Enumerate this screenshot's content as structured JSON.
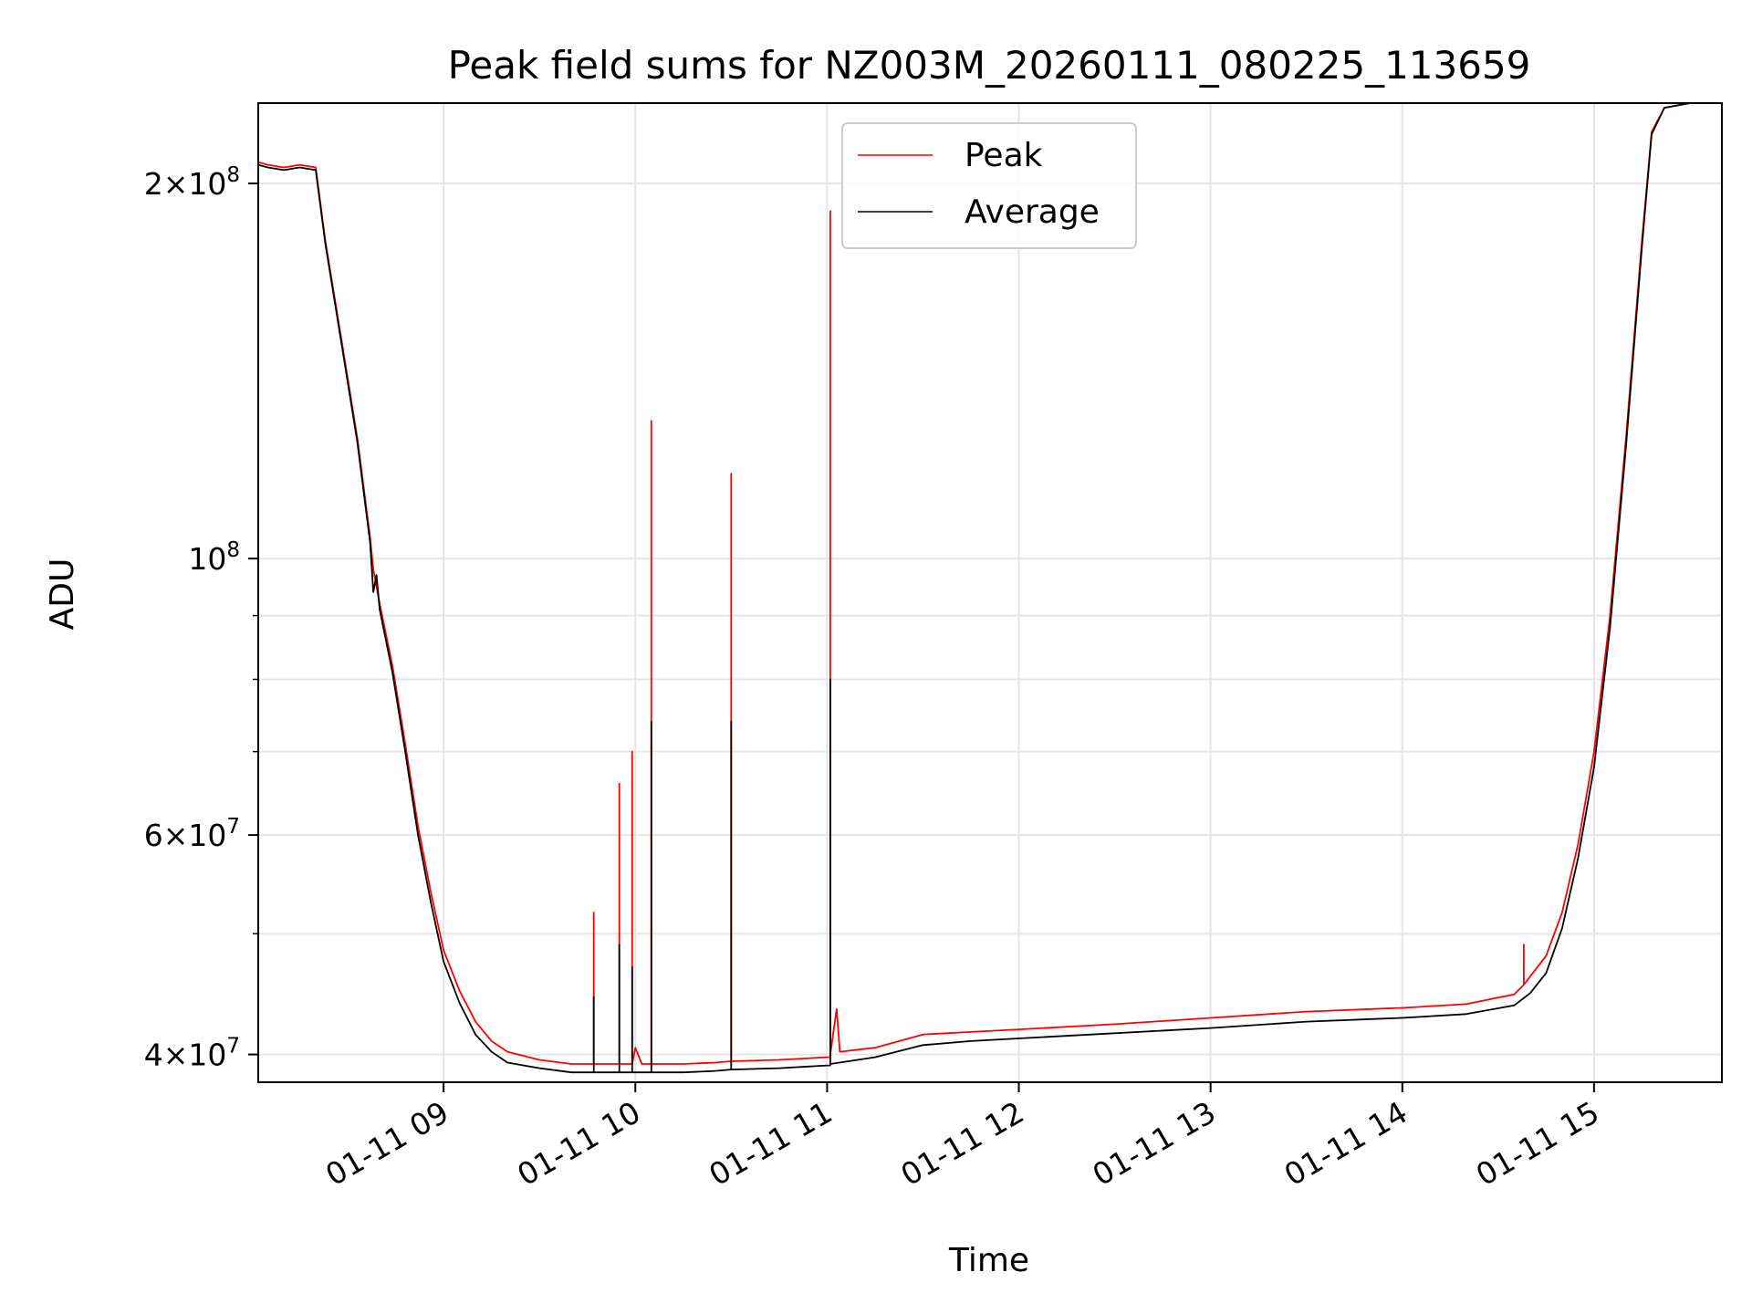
{
  "chart_data": {
    "type": "line",
    "title": "Peak field sums for NZ003M_20260111_080225_113659",
    "xlabel": "Time",
    "ylabel": "ADU",
    "yscale": "log",
    "xlim": [
      "2026-01-11 08:02",
      "2026-01-11 15:40"
    ],
    "ylim": [
      38000000,
      232000000
    ],
    "grid": true,
    "legend_position": "top-center",
    "x_ticks": [
      {
        "t": "2026-01-11 09:00",
        "label": "01-11 09"
      },
      {
        "t": "2026-01-11 10:00",
        "label": "01-11 10"
      },
      {
        "t": "2026-01-11 11:00",
        "label": "01-11 11"
      },
      {
        "t": "2026-01-11 12:00",
        "label": "01-11 12"
      },
      {
        "t": "2026-01-11 13:00",
        "label": "01-11 13"
      },
      {
        "t": "2026-01-11 14:00",
        "label": "01-11 14"
      },
      {
        "t": "2026-01-11 15:00",
        "label": "01-11 15"
      }
    ],
    "y_ticks": [
      {
        "v": 40000000,
        "base": "4×10",
        "exp": "7"
      },
      {
        "v": 60000000,
        "base": "6×10",
        "exp": "7"
      },
      {
        "v": 100000000,
        "base": "10",
        "exp": "8"
      },
      {
        "v": 200000000,
        "base": "2×10",
        "exp": "8"
      }
    ],
    "y_minor_ticks": [
      50000000,
      70000000,
      80000000,
      90000000
    ],
    "series": [
      {
        "name": "Peak",
        "color": "#ff0000",
        "points": [
          [
            "2026-01-11 08:02",
            208000000
          ],
          [
            "2026-01-11 08:05",
            207000000
          ],
          [
            "2026-01-11 08:10",
            206000000
          ],
          [
            "2026-01-11 08:15",
            207000000
          ],
          [
            "2026-01-11 08:20",
            206000000
          ],
          [
            "2026-01-11 08:23",
            180000000
          ],
          [
            "2026-01-11 08:28",
            150000000
          ],
          [
            "2026-01-11 08:33",
            125000000
          ],
          [
            "2026-01-11 08:37",
            104000000
          ],
          [
            "2026-01-11 08:38",
            98000000
          ],
          [
            "2026-01-11 08:40",
            92000000
          ],
          [
            "2026-01-11 08:44",
            82000000
          ],
          [
            "2026-01-11 08:48",
            71000000
          ],
          [
            "2026-01-11 08:52",
            61000000
          ],
          [
            "2026-01-11 08:56",
            54000000
          ],
          [
            "2026-01-11 09:00",
            48500000
          ],
          [
            "2026-01-11 09:05",
            45000000
          ],
          [
            "2026-01-11 09:10",
            42500000
          ],
          [
            "2026-01-11 09:15",
            41000000
          ],
          [
            "2026-01-11 09:20",
            40200000
          ],
          [
            "2026-01-11 09:30",
            39600000
          ],
          [
            "2026-01-11 09:40",
            39300000
          ],
          [
            "2026-01-11 09:47",
            39300000
          ],
          [
            "2026-01-11 09:47",
            52000000
          ],
          [
            "2026-01-11 09:47",
            39300000
          ],
          [
            "2026-01-11 09:55",
            39300000
          ],
          [
            "2026-01-11 09:55",
            66000000
          ],
          [
            "2026-01-11 09:55",
            39300000
          ],
          [
            "2026-01-11 09:59",
            39300000
          ],
          [
            "2026-01-11 09:59",
            70000000
          ],
          [
            "2026-01-11 09:59",
            39300000
          ],
          [
            "2026-01-11 10:00",
            40500000
          ],
          [
            "2026-01-11 10:02",
            39300000
          ],
          [
            "2026-01-11 10:05",
            39300000
          ],
          [
            "2026-01-11 10:05",
            129000000
          ],
          [
            "2026-01-11 10:05",
            39300000
          ],
          [
            "2026-01-11 10:15",
            39300000
          ],
          [
            "2026-01-11 10:25",
            39400000
          ],
          [
            "2026-01-11 10:30",
            39500000
          ],
          [
            "2026-01-11 10:30",
            117000000
          ],
          [
            "2026-01-11 10:30",
            39500000
          ],
          [
            "2026-01-11 10:45",
            39600000
          ],
          [
            "2026-01-11 11:00",
            39800000
          ],
          [
            "2026-01-11 11:01",
            39800000
          ],
          [
            "2026-01-11 11:01",
            190000000
          ],
          [
            "2026-01-11 11:01",
            40000000
          ],
          [
            "2026-01-11 11:03",
            43500000
          ],
          [
            "2026-01-11 11:04",
            40200000
          ],
          [
            "2026-01-11 11:15",
            40500000
          ],
          [
            "2026-01-11 11:30",
            41500000
          ],
          [
            "2026-01-11 11:45",
            41700000
          ],
          [
            "2026-01-11 12:00",
            41900000
          ],
          [
            "2026-01-11 12:30",
            42300000
          ],
          [
            "2026-01-11 13:00",
            42800000
          ],
          [
            "2026-01-11 13:30",
            43300000
          ],
          [
            "2026-01-11 14:00",
            43600000
          ],
          [
            "2026-01-11 14:20",
            43900000
          ],
          [
            "2026-01-11 14:35",
            44700000
          ],
          [
            "2026-01-11 14:38",
            45500000
          ],
          [
            "2026-01-11 14:38",
            49000000
          ],
          [
            "2026-01-11 14:38",
            45500000
          ],
          [
            "2026-01-11 14:45",
            48000000
          ],
          [
            "2026-01-11 14:50",
            52000000
          ],
          [
            "2026-01-11 14:55",
            59000000
          ],
          [
            "2026-01-11 15:00",
            70000000
          ],
          [
            "2026-01-11 15:05",
            90000000
          ],
          [
            "2026-01-11 15:10",
            125000000
          ],
          [
            "2026-01-11 15:15",
            180000000
          ],
          [
            "2026-01-11 15:18",
            220000000
          ],
          [
            "2026-01-11 15:22",
            230000000
          ],
          [
            "2026-01-11 15:30",
            232000000
          ],
          [
            "2026-01-11 15:40",
            232000000
          ]
        ]
      },
      {
        "name": "Average",
        "color": "#000000",
        "points": [
          [
            "2026-01-11 08:02",
            207000000
          ],
          [
            "2026-01-11 08:05",
            206000000
          ],
          [
            "2026-01-11 08:10",
            205000000
          ],
          [
            "2026-01-11 08:15",
            206000000
          ],
          [
            "2026-01-11 08:20",
            205000000
          ],
          [
            "2026-01-11 08:23",
            179000000
          ],
          [
            "2026-01-11 08:28",
            149000000
          ],
          [
            "2026-01-11 08:33",
            124000000
          ],
          [
            "2026-01-11 08:37",
            103000000
          ],
          [
            "2026-01-11 08:38",
            94000000
          ],
          [
            "2026-01-11 08:39",
            97000000
          ],
          [
            "2026-01-11 08:40",
            91000000
          ],
          [
            "2026-01-11 08:44",
            81000000
          ],
          [
            "2026-01-11 08:48",
            70000000
          ],
          [
            "2026-01-11 08:52",
            60000000
          ],
          [
            "2026-01-11 08:56",
            53000000
          ],
          [
            "2026-01-11 09:00",
            47500000
          ],
          [
            "2026-01-11 09:05",
            44000000
          ],
          [
            "2026-01-11 09:10",
            41500000
          ],
          [
            "2026-01-11 09:15",
            40200000
          ],
          [
            "2026-01-11 09:20",
            39400000
          ],
          [
            "2026-01-11 09:30",
            39000000
          ],
          [
            "2026-01-11 09:40",
            38700000
          ],
          [
            "2026-01-11 09:47",
            38700000
          ],
          [
            "2026-01-11 09:47",
            44500000
          ],
          [
            "2026-01-11 09:47",
            38700000
          ],
          [
            "2026-01-11 09:55",
            38700000
          ],
          [
            "2026-01-11 09:55",
            49000000
          ],
          [
            "2026-01-11 09:55",
            38700000
          ],
          [
            "2026-01-11 09:59",
            38700000
          ],
          [
            "2026-01-11 09:59",
            47000000
          ],
          [
            "2026-01-11 09:59",
            38700000
          ],
          [
            "2026-01-11 10:05",
            38700000
          ],
          [
            "2026-01-11 10:05",
            74000000
          ],
          [
            "2026-01-11 10:05",
            38700000
          ],
          [
            "2026-01-11 10:15",
            38700000
          ],
          [
            "2026-01-11 10:25",
            38800000
          ],
          [
            "2026-01-11 10:30",
            38900000
          ],
          [
            "2026-01-11 10:30",
            74000000
          ],
          [
            "2026-01-11 10:30",
            38900000
          ],
          [
            "2026-01-11 10:45",
            39000000
          ],
          [
            "2026-01-11 11:00",
            39200000
          ],
          [
            "2026-01-11 11:01",
            39200000
          ],
          [
            "2026-01-11 11:01",
            80000000
          ],
          [
            "2026-01-11 11:01",
            39300000
          ],
          [
            "2026-01-11 11:15",
            39800000
          ],
          [
            "2026-01-11 11:30",
            40700000
          ],
          [
            "2026-01-11 11:45",
            41000000
          ],
          [
            "2026-01-11 12:00",
            41200000
          ],
          [
            "2026-01-11 12:30",
            41600000
          ],
          [
            "2026-01-11 13:00",
            42000000
          ],
          [
            "2026-01-11 13:30",
            42500000
          ],
          [
            "2026-01-11 14:00",
            42800000
          ],
          [
            "2026-01-11 14:20",
            43100000
          ],
          [
            "2026-01-11 14:35",
            43800000
          ],
          [
            "2026-01-11 14:40",
            44800000
          ],
          [
            "2026-01-11 14:45",
            46500000
          ],
          [
            "2026-01-11 14:50",
            50500000
          ],
          [
            "2026-01-11 14:55",
            57500000
          ],
          [
            "2026-01-11 15:00",
            68000000
          ],
          [
            "2026-01-11 15:05",
            88000000
          ],
          [
            "2026-01-11 15:10",
            123000000
          ],
          [
            "2026-01-11 15:15",
            178000000
          ],
          [
            "2026-01-11 15:18",
            219000000
          ],
          [
            "2026-01-11 15:22",
            230000000
          ],
          [
            "2026-01-11 15:30",
            232000000
          ],
          [
            "2026-01-11 15:40",
            232000000
          ]
        ]
      }
    ]
  }
}
